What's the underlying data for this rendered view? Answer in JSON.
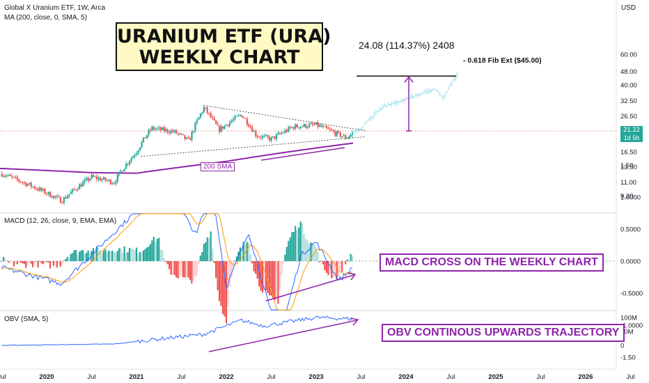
{
  "header": {
    "symbol_line": "Global X Uranium ETF, 1W, Arca",
    "ma_line": "MA (200, close, 0, SMA, 5)",
    "currency": "USD"
  },
  "annotations": {
    "title_line1": "URANIUM ETF (URA)",
    "title_line2": "WEEKLY CHART",
    "measure_text": "24.08 (114.37%) 2408",
    "fib_text": "- 0.618 Fib Ext ($45.00)",
    "sma_text": "200 SMA",
    "macd_callout": "MACD CROSS ON THE WEEKLY CHART",
    "obv_callout": "OBV CONTINOUS UPWARDS TRAJECTORY"
  },
  "last_price": {
    "value": "21.22",
    "countdown": "1d 5h"
  },
  "panes": {
    "macd_header": "MACD (12, 26, close, 9, EMA, EMA)",
    "obv_header": "OBV (SMA, 5)"
  },
  "colors": {
    "up": "#26a69a",
    "down": "#ef5350",
    "projection": "#a8e6ec",
    "sma": "#8e24aa",
    "macd": "#2962ff",
    "signal": "#ff9800",
    "obv": "#2962ff"
  },
  "chart_data": [
    {
      "type": "candlestick",
      "scale": "log",
      "y_ticks": [
        "60.00",
        "48.00",
        "40.00",
        "32.50",
        "26.50",
        "21.22",
        "16.50",
        "13.50",
        "11.00",
        "9.20"
      ],
      "x_ticks": [
        "Jul",
        "2020",
        "Jul",
        "2021",
        "Jul",
        "2022",
        "Jul",
        "2023",
        "Jul",
        "2024",
        "Jul",
        "2025",
        "Jul",
        "2026",
        "Jul"
      ],
      "key_points": [
        {
          "date": "2019-07",
          "close": 12.3
        },
        {
          "date": "2020-03",
          "close": 8.6
        },
        {
          "date": "2020-07",
          "close": 11.8
        },
        {
          "date": "2020-10",
          "close": 11.0
        },
        {
          "date": "2021-01",
          "close": 16.5
        },
        {
          "date": "2021-03",
          "close": 22.5
        },
        {
          "date": "2021-06",
          "close": 21.5
        },
        {
          "date": "2021-08",
          "close": 19.0
        },
        {
          "date": "2021-10",
          "close": 29.5
        },
        {
          "date": "2021-12",
          "close": 22.0
        },
        {
          "date": "2022-03",
          "close": 27.0
        },
        {
          "date": "2022-05",
          "close": 20.5
        },
        {
          "date": "2022-07",
          "close": 19.5
        },
        {
          "date": "2022-10",
          "close": 23.0
        },
        {
          "date": "2023-01",
          "close": 23.5
        },
        {
          "date": "2023-05",
          "close": 19.8
        },
        {
          "date": "2023-06",
          "close": 21.22
        }
      ],
      "projection": [
        {
          "date": "2023-07",
          "close": 22.5
        },
        {
          "date": "2023-10",
          "close": 30.0
        },
        {
          "date": "2024-01",
          "close": 33.0
        },
        {
          "date": "2024-05",
          "close": 38.0
        },
        {
          "date": "2024-06",
          "close": 33.5
        },
        {
          "date": "2024-08",
          "close": 47.0
        }
      ],
      "sma_200_key_points": [
        {
          "date": "2019-07",
          "value": 13.2
        },
        {
          "date": "2020-07",
          "value": 12.5
        },
        {
          "date": "2021-01",
          "value": 12.4
        },
        {
          "date": "2022-01",
          "value": 14.5
        },
        {
          "date": "2023-06",
          "value": 18.5
        }
      ],
      "fib_extension": 45.0,
      "measured_move": {
        "change": 24.08,
        "percent": 114.37
      }
    },
    {
      "type": "bar",
      "name": "MACD (12, 26, close, 9, EMA, EMA)",
      "y_ticks": [
        "1.50",
        "1.0000",
        "0.5000",
        "0.0000",
        "-0.5000",
        "-1.0000",
        "-1.50"
      ],
      "macd_key_points": [
        {
          "date": "2019-07",
          "value": -0.1
        },
        {
          "date": "2020-03",
          "value": -0.35
        },
        {
          "date": "2021-02",
          "value": 0.9
        },
        {
          "date": "2021-04",
          "value": 1.4
        },
        {
          "date": "2021-09",
          "value": 0.4
        },
        {
          "date": "2021-11",
          "value": 1.2
        },
        {
          "date": "2022-01",
          "value": -0.4
        },
        {
          "date": "2022-04",
          "value": 0.45
        },
        {
          "date": "2022-08",
          "value": -1.25
        },
        {
          "date": "2022-11",
          "value": 0.1
        },
        {
          "date": "2023-01",
          "value": 0.3
        },
        {
          "date": "2023-04",
          "value": -0.3
        },
        {
          "date": "2023-06",
          "value": -0.1
        }
      ]
    },
    {
      "type": "line",
      "name": "OBV (SMA, 5)",
      "y_ticks": [
        "100M",
        "50M",
        "0"
      ],
      "obv_key_points": [
        {
          "date": "2019-07",
          "value": 0
        },
        {
          "date": "2020-10",
          "value": 5
        },
        {
          "date": "2021-03",
          "value": 20
        },
        {
          "date": "2021-10",
          "value": 40
        },
        {
          "date": "2022-03",
          "value": 90
        },
        {
          "date": "2022-06",
          "value": 70
        },
        {
          "date": "2023-01",
          "value": 100
        },
        {
          "date": "2023-06",
          "value": 95
        }
      ]
    }
  ]
}
